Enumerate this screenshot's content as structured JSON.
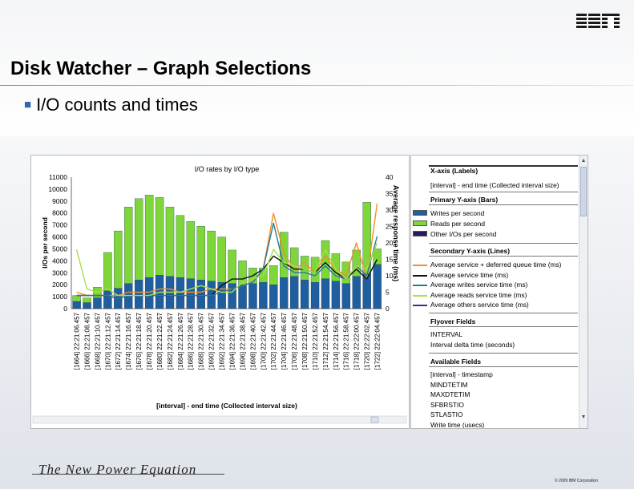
{
  "slide": {
    "title": "Disk Watcher – Graph Selections",
    "bullet": "I/O counts and times",
    "tagline": "The New Power Equation",
    "copyright": "© 2009 IBM Corporation",
    "logo": "IBM"
  },
  "side_panel": {
    "x_axis": {
      "head": "X-axis (Labels)",
      "item": "[interval] - end time (Collected interval size)"
    },
    "primary_y": {
      "head": "Primary Y-axis (Bars)",
      "items": [
        {
          "label": "Writes per second",
          "color": "#1f5fa0"
        },
        {
          "label": "Reads per second",
          "color": "#7fd63a"
        },
        {
          "label": "Other I/Os per second",
          "color": "#2a1a5e"
        }
      ]
    },
    "secondary_y": {
      "head": "Secondary Y-axis (Lines)",
      "items": [
        {
          "label": "Average service + deferred queue time (ms)",
          "color": "#f0902a"
        },
        {
          "label": "Average service time (ms)",
          "color": "#111111"
        },
        {
          "label": "Average writes service time (ms)",
          "color": "#2a7a96"
        },
        {
          "label": "Average reads service time (ms)",
          "color": "#a6e04a"
        },
        {
          "label": "Average others service time (ms)",
          "color": "#4a2a80"
        }
      ]
    },
    "flyover": {
      "head": "Flyover Fields",
      "items": [
        "INTERVAL",
        "Interval delta time (seconds)"
      ]
    },
    "available": {
      "head": "Available Fields",
      "items": [
        "[interval] - timestamp",
        "MINDTETIM",
        "MAXDTETIM",
        "SFBRSTIO",
        "STLASTIO",
        "Write time (usecs)"
      ]
    }
  },
  "chart_data": {
    "type": "bar",
    "title": "I/O rates by I/O type",
    "xlabel": "[interval] - end time (Collected interval size)",
    "ylabel": "I/Os per second",
    "y2label": "Average response time (ms)",
    "ylim": [
      0,
      11000
    ],
    "y2lim": [
      0,
      40
    ],
    "yticks": [
      0,
      1000,
      2000,
      3000,
      4000,
      5000,
      6000,
      7000,
      8000,
      9000,
      10000,
      11000
    ],
    "y2ticks": [
      0,
      5,
      10,
      15,
      20,
      25,
      30,
      35,
      40
    ],
    "categories": [
      "[1664] 22:21:06.457",
      "[1666] 22:21:08.457",
      "[1668] 22:21:10.457",
      "[1670] 22:21:12.457",
      "[1672] 22:21:14.457",
      "[1674] 22:21:16.457",
      "[1676] 22:21:18.457",
      "[1678] 22:21:20.457",
      "[1680] 22:21:22.457",
      "[1682] 22:21:24.457",
      "[1684] 22:21:26.457",
      "[1686] 22:21:28.457",
      "[1688] 22:21:30.457",
      "[1690] 22:21:32.457",
      "[1692] 22:21:34.457",
      "[1694] 22:21:36.457",
      "[1696] 22:21:38.457",
      "[1698] 22:21:40.457",
      "[1700] 22:21:42.457",
      "[1702] 22:21:44.457",
      "[1704] 22:21:46.457",
      "[1706] 22:21:48.457",
      "[1708] 22:21:50.457",
      "[1710] 22:21:52.457",
      "[1712] 22:21:54.457",
      "[1714] 22:21:56.457",
      "[1716] 22:21:58.457",
      "[1718] 22:22:00.457",
      "[1720] 22:22:02.457",
      "[1722] 22:22:04.457"
    ],
    "series": [
      {
        "name": "Writes per second",
        "axis": "primary",
        "kind": "bar",
        "color": "#1f5fa0",
        "values": [
          600,
          500,
          900,
          1500,
          1700,
          2100,
          2400,
          2600,
          2800,
          2700,
          2600,
          2500,
          2400,
          2300,
          2200,
          2100,
          2000,
          2100,
          2200,
          2000,
          2600,
          2700,
          2400,
          2200,
          2500,
          2300,
          2100,
          2700,
          2900,
          3700
        ]
      },
      {
        "name": "Reads per second",
        "axis": "primary",
        "kind": "bar",
        "color": "#7fd63a",
        "values": [
          500,
          400,
          900,
          3200,
          4800,
          6400,
          6800,
          6900,
          6500,
          5800,
          5200,
          4800,
          4500,
          4200,
          3800,
          2800,
          2000,
          1300,
          1200,
          1600,
          3800,
          2400,
          2000,
          2100,
          3200,
          2300,
          1800,
          2200,
          6000,
          1300
        ]
      },
      {
        "name": "Other I/Os per second",
        "axis": "primary",
        "kind": "bar",
        "color": "#2a1a5e",
        "values": [
          0,
          0,
          0,
          0,
          0,
          0,
          0,
          0,
          0,
          0,
          0,
          0,
          0,
          0,
          0,
          0,
          0,
          0,
          0,
          0,
          0,
          0,
          0,
          0,
          0,
          0,
          0,
          0,
          0,
          0
        ]
      },
      {
        "name": "Average service + deferred queue time (ms)",
        "axis": "secondary",
        "kind": "line",
        "color": "#f0902a",
        "values": [
          5,
          4,
          4,
          4,
          4,
          5,
          5,
          5,
          6,
          6,
          5,
          5,
          5,
          6,
          6,
          6,
          7,
          8,
          12,
          29,
          17,
          12,
          14,
          11,
          16,
          12,
          10,
          20,
          9,
          32
        ]
      },
      {
        "name": "Average service time (ms)",
        "axis": "secondary",
        "kind": "line",
        "color": "#111111",
        "values": [
          4,
          4,
          4,
          4,
          3,
          4,
          4,
          4,
          4,
          4,
          4,
          4,
          4,
          4,
          7,
          9,
          9,
          10,
          12,
          16,
          14,
          12,
          12,
          11,
          14,
          11,
          9,
          12,
          9,
          15
        ]
      },
      {
        "name": "Average writes service time (ms)",
        "axis": "secondary",
        "kind": "line",
        "color": "#2a7a96",
        "values": [
          4,
          4,
          4,
          4,
          3,
          4,
          4,
          4,
          4,
          4,
          4,
          4,
          4,
          4,
          5,
          6,
          7,
          8,
          12,
          26,
          13,
          11,
          11,
          10,
          13,
          10,
          9,
          13,
          10,
          22
        ]
      },
      {
        "name": "Average reads service time (ms)",
        "axis": "secondary",
        "kind": "line",
        "color": "#a6e04a",
        "values": [
          18,
          6,
          5,
          6,
          4,
          4,
          4,
          4,
          5,
          5,
          5,
          6,
          7,
          6,
          5,
          5,
          8,
          9,
          10,
          18,
          14,
          13,
          12,
          11,
          18,
          12,
          9,
          13,
          12,
          20
        ]
      },
      {
        "name": "Average others service time (ms)",
        "axis": "secondary",
        "kind": "line",
        "color": "#4a2a80",
        "values": [
          0,
          0,
          0,
          0,
          0,
          0,
          0,
          0,
          0,
          0,
          0,
          0,
          0,
          0,
          0,
          0,
          0,
          0,
          0,
          0,
          0,
          0,
          0,
          0,
          0,
          0,
          0,
          0,
          0,
          0
        ]
      }
    ],
    "grid": false,
    "legend": "right panel"
  }
}
